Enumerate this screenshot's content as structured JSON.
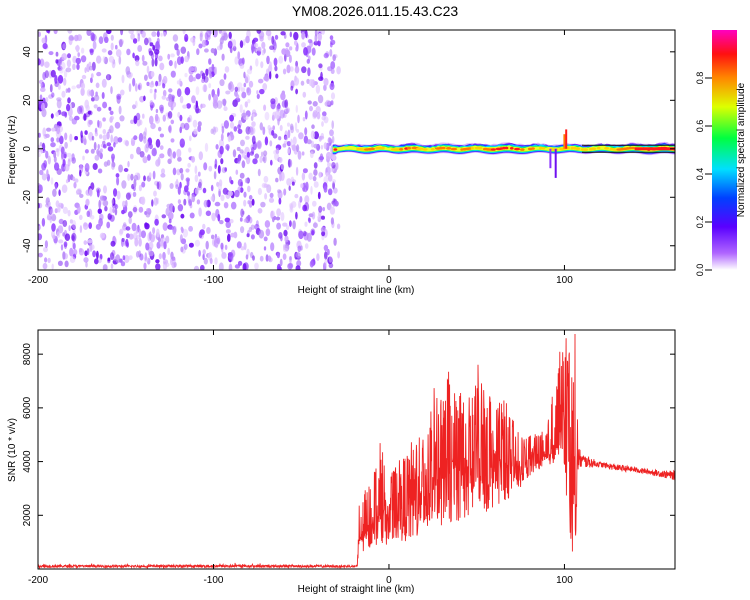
{
  "title": "YM08.2026.011.15.43.C23",
  "chart_data": [
    {
      "type": "heatmap",
      "name": "spectrogram",
      "title": "YM08.2026.011.15.43.C23",
      "xlabel": "Height of straight line (km)",
      "ylabel": "Frequency (Hz)",
      "xlim": [
        -200,
        163
      ],
      "ylim": [
        -50,
        49
      ],
      "xticks": [
        -200,
        -100,
        0,
        100
      ],
      "xtick_labels": [
        "-200",
        "-100",
        "0",
        "100"
      ],
      "yticks": [
        -40,
        -20,
        0,
        20,
        40
      ],
      "ytick_labels": [
        "-40",
        "-20",
        "0",
        "20",
        "40"
      ],
      "noise_region_x": [
        -200,
        -32
      ],
      "signal_band": {
        "x_start": -32,
        "x_end": 163,
        "center_freq_hz": 0,
        "description": "narrow band near 0 Hz, highest amplitude around 60-163 km",
        "profile": [
          {
            "x": -30,
            "amp": 0.45
          },
          {
            "x": -20,
            "amp": 0.6
          },
          {
            "x": -10,
            "amp": 0.85
          },
          {
            "x": 0,
            "amp": 0.55
          },
          {
            "x": 10,
            "amp": 0.9
          },
          {
            "x": 20,
            "amp": 0.7
          },
          {
            "x": 30,
            "amp": 0.8
          },
          {
            "x": 40,
            "amp": 0.85
          },
          {
            "x": 50,
            "amp": 0.7
          },
          {
            "x": 60,
            "amp": 0.9
          },
          {
            "x": 70,
            "amp": 0.95
          },
          {
            "x": 80,
            "amp": 0.8
          },
          {
            "x": 90,
            "amp": 0.6
          },
          {
            "x": 100,
            "amp": 0.75
          },
          {
            "x": 110,
            "amp": 0.65
          },
          {
            "x": 130,
            "amp": 0.75
          },
          {
            "x": 150,
            "amp": 0.95
          },
          {
            "x": 163,
            "amp": 0.95
          }
        ]
      },
      "colorbar": {
        "label": "Normalized spectral amplitude",
        "range": [
          0,
          1
        ],
        "ticks": [
          0.0,
          0.2,
          0.4,
          0.6,
          0.8
        ],
        "tick_labels": [
          "0.0",
          "0.2",
          "0.4",
          "0.6",
          "0.8"
        ],
        "colormap": "rainbow (white-violet-blue-cyan-green-yellow-orange-red-magenta)"
      }
    },
    {
      "type": "line",
      "name": "snr",
      "xlabel": "Height of straight line (km)",
      "ylabel": "SNR (10 * v/v)",
      "xlim": [
        -200,
        163
      ],
      "ylim": [
        0,
        8900
      ],
      "xticks": [
        -200,
        -100,
        0,
        100
      ],
      "xtick_labels": [
        "-200",
        "-100",
        "0",
        "100"
      ],
      "yticks": [
        2000,
        4000,
        6000,
        8000
      ],
      "ytick_labels": [
        "2000",
        "4000",
        "6000",
        "8000"
      ],
      "series": [
        {
          "name": "SNR",
          "color": "#ee2222",
          "x": [
            -200,
            -150,
            -100,
            -50,
            -18,
            -17,
            -15,
            -10,
            -5,
            0,
            5,
            10,
            15,
            20,
            25,
            30,
            35,
            40,
            45,
            50,
            55,
            60,
            65,
            70,
            75,
            80,
            85,
            90,
            95,
            100,
            103,
            106,
            108,
            110,
            120,
            130,
            140,
            150,
            163
          ],
          "envelope_low": [
            60,
            60,
            60,
            60,
            60,
            800,
            500,
            800,
            900,
            900,
            1100,
            1000,
            1100,
            1300,
            1500,
            1600,
            1700,
            1800,
            1900,
            2000,
            2100,
            2300,
            2500,
            2700,
            3000,
            3400,
            3700,
            3800,
            3900,
            3800,
            300,
            400,
            3700,
            3750,
            3800,
            3650,
            3600,
            3500,
            3300
          ],
          "envelope_high": [
            230,
            210,
            240,
            220,
            200,
            2400,
            2800,
            3300,
            4900,
            3400,
            4000,
            4300,
            5200,
            5300,
            6700,
            7200,
            7400,
            6900,
            6300,
            7800,
            6800,
            6800,
            6500,
            5700,
            5000,
            5100,
            5100,
            5200,
            7400,
            8900,
            8800,
            8900,
            4600,
            4300,
            4000,
            3900,
            3800,
            3700,
            3650
          ]
        }
      ]
    }
  ]
}
